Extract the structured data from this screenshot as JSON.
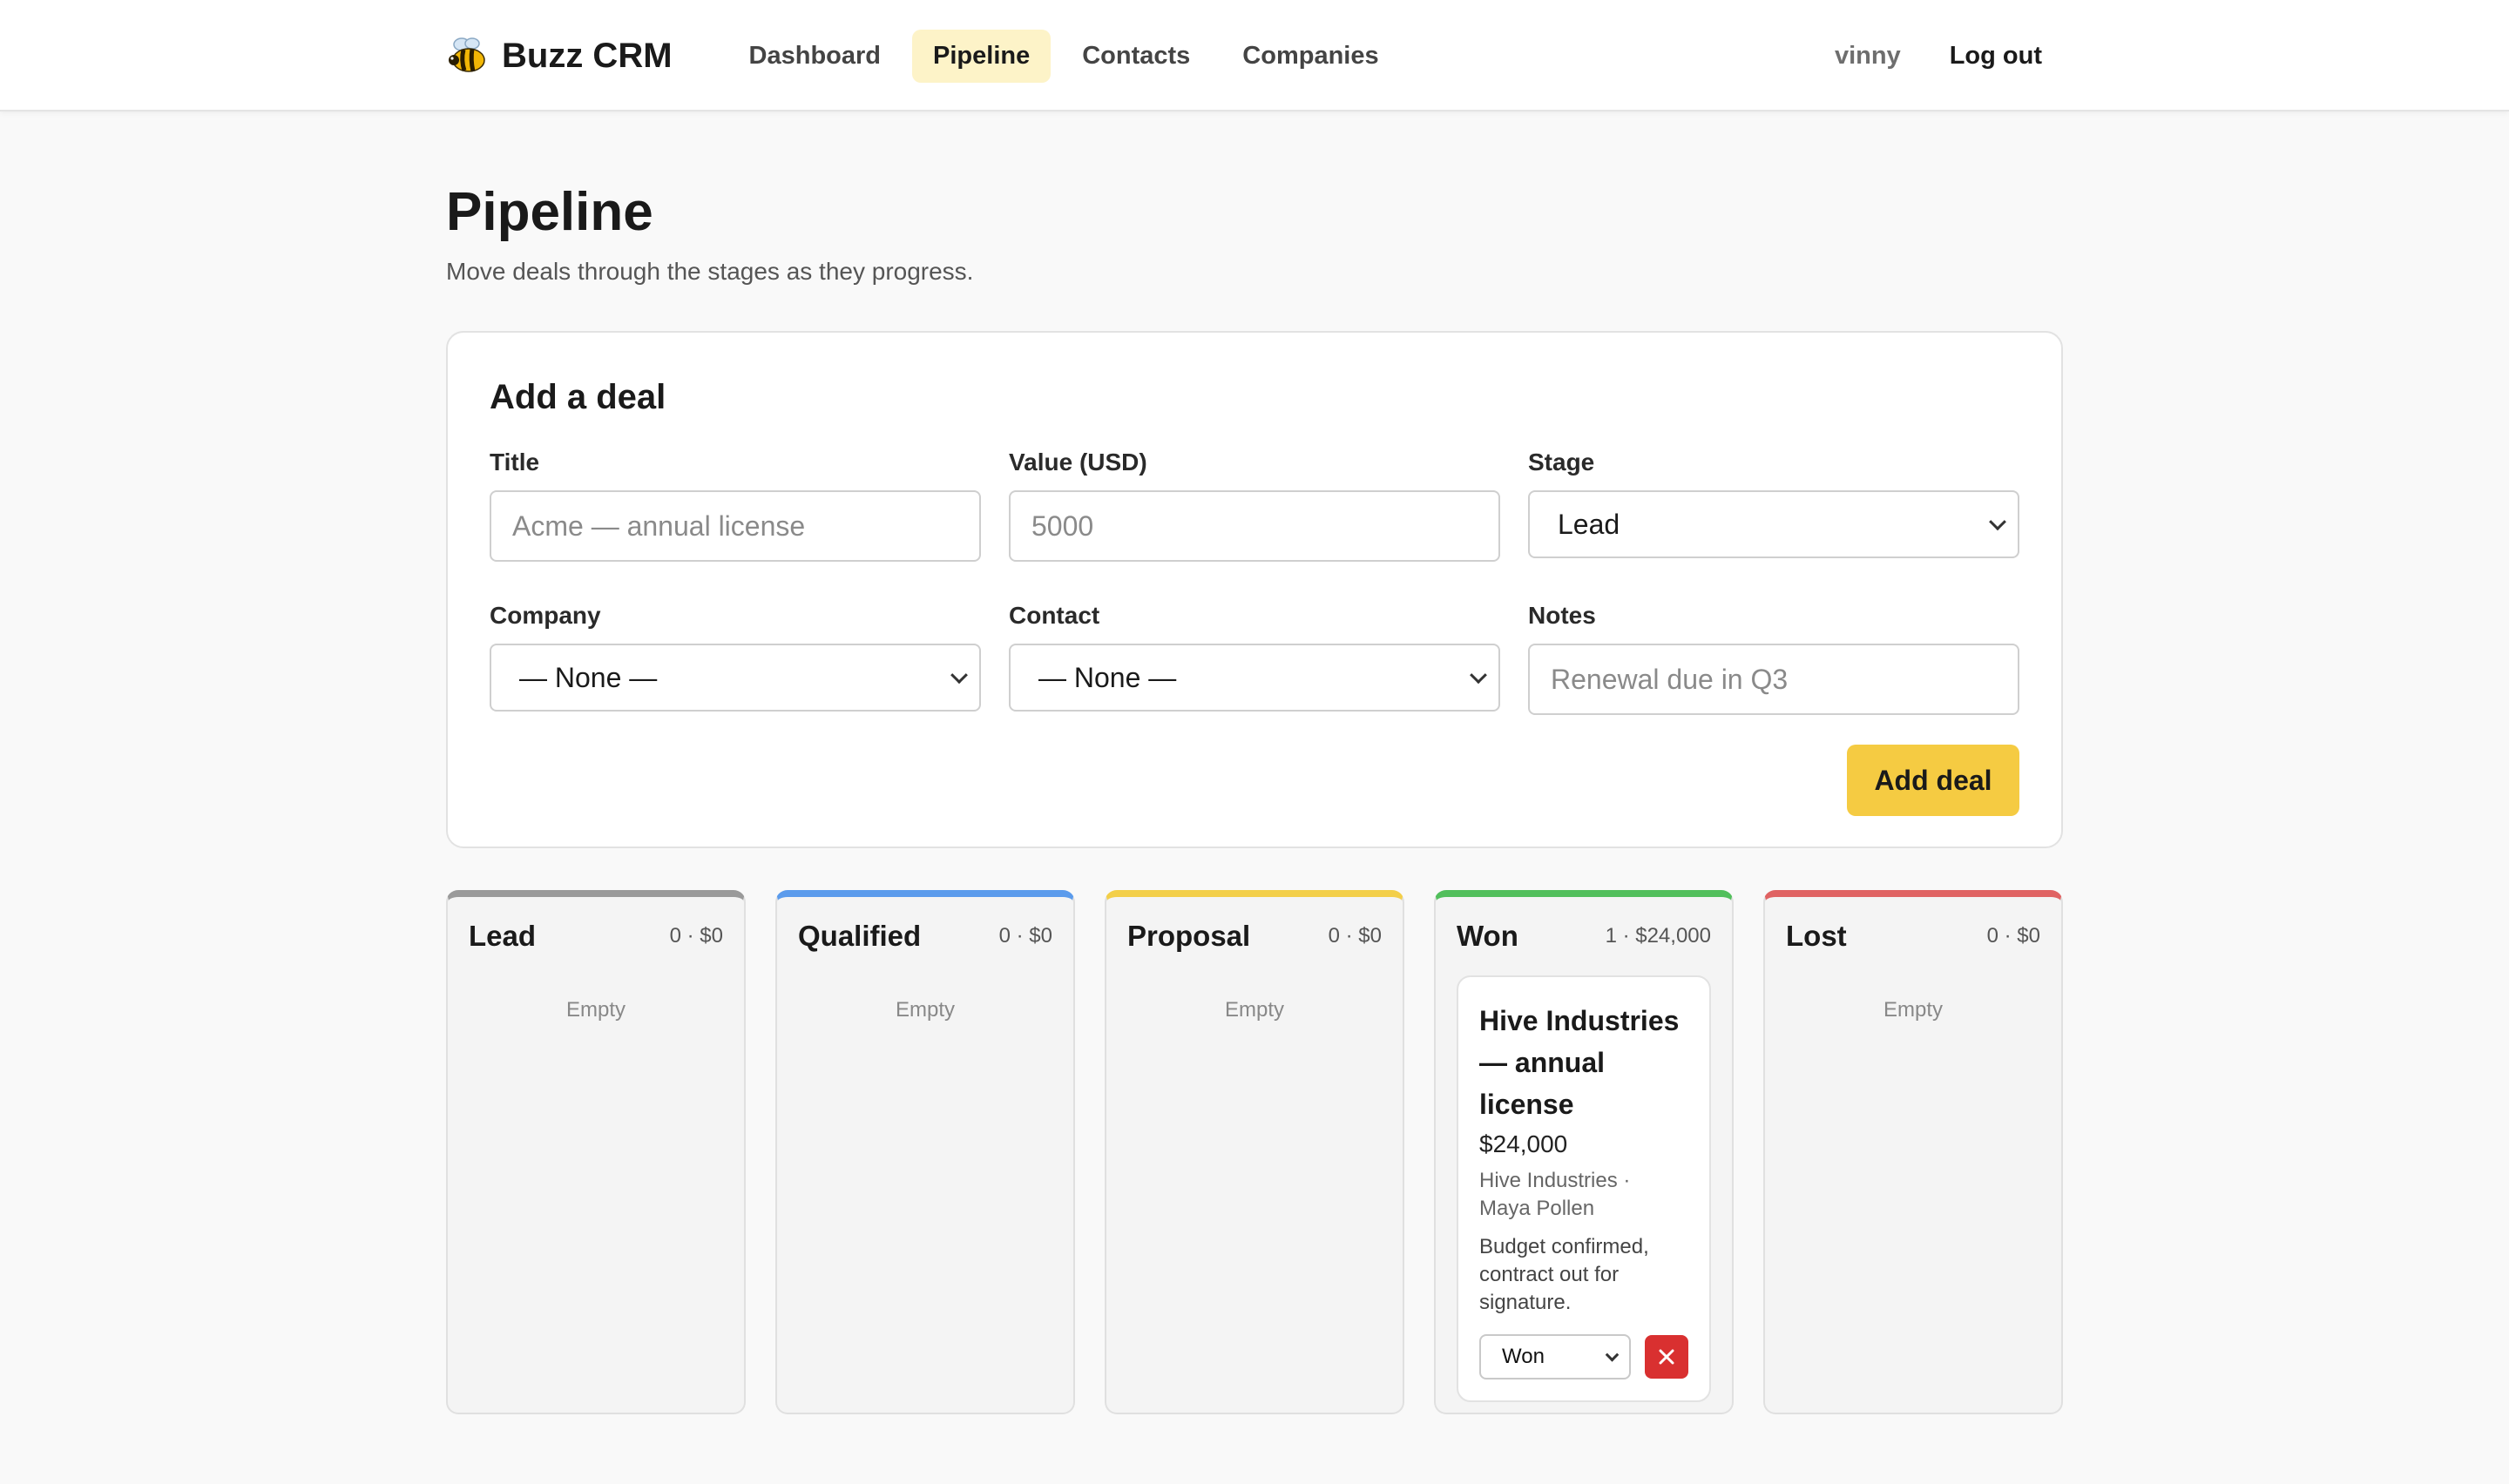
{
  "nav": {
    "brand": "Buzz CRM",
    "brand_icon": "bee-icon",
    "links": [
      "Dashboard",
      "Pipeline",
      "Contacts",
      "Companies"
    ],
    "active": "Pipeline",
    "user": "vinny",
    "logout": "Log out"
  },
  "page": {
    "title": "Pipeline",
    "subtitle": "Move deals through the stages as they progress."
  },
  "form": {
    "title": "Add a deal",
    "title_field": {
      "label": "Title",
      "placeholder": "Acme — annual license",
      "value": ""
    },
    "value_field": {
      "label": "Value (USD)",
      "placeholder": "5000",
      "value": ""
    },
    "stage_field": {
      "label": "Stage",
      "value": "Lead"
    },
    "company_field": {
      "label": "Company",
      "value": "— None —"
    },
    "contact_field": {
      "label": "Contact",
      "value": "— None —"
    },
    "notes_field": {
      "label": "Notes",
      "placeholder": "Renewal due in Q3",
      "value": ""
    },
    "submit": "Add deal",
    "accent": "#f5cb42"
  },
  "board": {
    "columns": [
      {
        "name": "Lead",
        "stats": "0 · $0",
        "color": "#9a9a9a",
        "empty": "Empty"
      },
      {
        "name": "Qualified",
        "stats": "0 · $0",
        "color": "#5b9bec",
        "empty": "Empty"
      },
      {
        "name": "Proposal",
        "stats": "0 · $0",
        "color": "#f3cf49",
        "empty": "Empty"
      },
      {
        "name": "Won",
        "stats": "1 · $24,000",
        "color": "#52bf5c"
      },
      {
        "name": "Lost",
        "stats": "0 · $0",
        "color": "#e06363",
        "empty": "Empty"
      }
    ],
    "won_deal": {
      "title": "Hive Industries — annual license",
      "value": "$24,000",
      "meta_company": "Hive Industries ·",
      "meta_contact": "Maya Pollen",
      "notes": "Budget confirmed, contract out for signature.",
      "stage": "Won",
      "delete_icon": "close-icon",
      "delete_color": "#d93030"
    }
  }
}
